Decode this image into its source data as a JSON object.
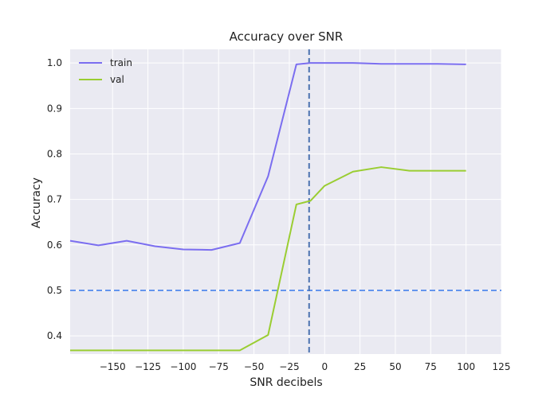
{
  "chart_data": {
    "type": "line",
    "title": "Accuracy over SNR",
    "xlabel": "SNR decibels",
    "ylabel": "Accuracy",
    "xlim": [
      -180,
      125
    ],
    "ylim": [
      0.36,
      1.03
    ],
    "xticks": [
      -150,
      -125,
      -100,
      -75,
      -50,
      -25,
      0,
      25,
      50,
      75,
      100,
      125
    ],
    "xtick_labels": [
      "−150",
      "−125",
      "−100",
      "−75",
      "−50",
      "−25",
      "0",
      "25",
      "50",
      "75",
      "100",
      "125"
    ],
    "yticks": [
      0.4,
      0.5,
      0.6,
      0.7,
      0.8,
      0.9,
      1.0
    ],
    "ytick_labels": [
      "0.4",
      "0.5",
      "0.6",
      "0.7",
      "0.8",
      "0.9",
      "1.0"
    ],
    "grid": true,
    "legend_position": "top-left",
    "x": [
      -160,
      -140,
      -120,
      -100,
      -80,
      -60,
      -40,
      -20,
      0,
      20,
      40,
      60,
      80,
      100
    ],
    "series": [
      {
        "name": "train",
        "color": "#7b6ef0",
        "x": [
          -180,
          -160,
          -140,
          -120,
          -100,
          -80,
          -60,
          -40,
          -20,
          -10,
          0,
          20,
          40,
          60,
          80,
          100
        ],
        "values": [
          0.609,
          0.599,
          0.609,
          0.597,
          0.59,
          0.589,
          0.604,
          0.751,
          0.997,
          1.0,
          1.0,
          1.0,
          0.998,
          0.998,
          0.998,
          0.997
        ]
      },
      {
        "name": "val",
        "color": "#9acd32",
        "x": [
          -180,
          -160,
          -140,
          -120,
          -100,
          -80,
          -60,
          -40,
          -20,
          -10,
          0,
          20,
          40,
          60,
          80,
          100
        ],
        "values": [
          0.368,
          0.368,
          0.368,
          0.368,
          0.368,
          0.368,
          0.368,
          0.402,
          0.689,
          0.697,
          0.73,
          0.761,
          0.771,
          0.763,
          0.763,
          0.763
        ]
      }
    ],
    "reference_lines": [
      {
        "orientation": "horizontal",
        "value": 0.5,
        "color": "#6495ed",
        "style": "dashed"
      },
      {
        "orientation": "vertical",
        "value": -11,
        "color": "#4c72b0",
        "style": "dashed"
      }
    ],
    "colors": {
      "background": "#eaeaf2",
      "grid": "#ffffff"
    }
  }
}
